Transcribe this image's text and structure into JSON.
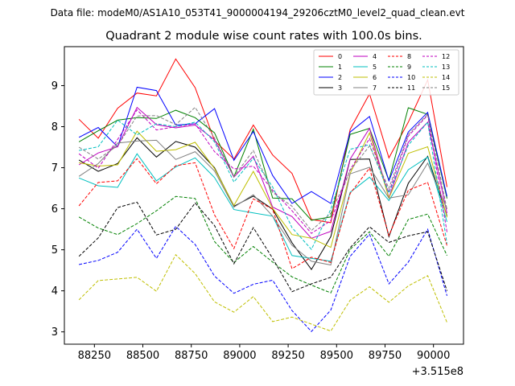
{
  "header": {
    "data_file": "Data file: modeM0/AS1A10_053T41_9000004194_29206cztM0_level2_quad_clean.evt"
  },
  "chart_data": {
    "type": "line",
    "title": "Quadrant 2 module wise count rates with 100.0s bins.",
    "xlabel": "",
    "ylabel": "",
    "x_offset_label": "+3.515e8",
    "xlim": [
      88095,
      90155
    ],
    "ylim": [
      2.7,
      9.95
    ],
    "xticks": [
      88250,
      88500,
      88750,
      89000,
      89250,
      89500,
      89750,
      90000
    ],
    "yticks": [
      3,
      4,
      5,
      6,
      7,
      8,
      9
    ],
    "grid": false,
    "legend_position": "top-right",
    "legend_columns": 4,
    "x": [
      88170,
      88270,
      88370,
      88470,
      88570,
      88670,
      88770,
      88870,
      88970,
      89070,
      89170,
      89270,
      89370,
      89470,
      89570,
      89670,
      89770,
      89870,
      89970,
      90070
    ],
    "series": [
      {
        "name": "0",
        "color": "#ff0000",
        "dash": "solid",
        "values": [
          8.18,
          7.72,
          8.45,
          8.82,
          8.75,
          9.65,
          8.95,
          7.66,
          7.21,
          8.04,
          7.31,
          6.86,
          5.74,
          5.66,
          7.93,
          8.8,
          7.24,
          8.11,
          9.14,
          6.53
        ]
      },
      {
        "name": "1",
        "color": "#008000",
        "dash": "solid",
        "values": [
          7.63,
          7.9,
          8.16,
          8.22,
          8.2,
          8.4,
          8.22,
          7.85,
          6.78,
          7.94,
          6.26,
          6.24,
          5.72,
          5.8,
          7.81,
          7.96,
          6.69,
          8.46,
          8.3,
          6.25
        ]
      },
      {
        "name": "2",
        "color": "#0000ff",
        "dash": "solid",
        "values": [
          7.74,
          7.98,
          7.51,
          8.96,
          8.88,
          8.04,
          8.07,
          8.44,
          7.18,
          7.88,
          6.81,
          6.13,
          6.42,
          6.13,
          7.87,
          8.25,
          6.68,
          7.87,
          8.35,
          6.3
        ]
      },
      {
        "name": "3",
        "color": "#000000",
        "dash": "solid",
        "values": [
          7.19,
          6.91,
          7.1,
          7.73,
          7.26,
          7.64,
          7.5,
          7.0,
          6.06,
          6.31,
          5.99,
          5.17,
          4.52,
          5.32,
          7.2,
          7.21,
          5.32,
          6.62,
          7.28,
          5.82
        ]
      },
      {
        "name": "4",
        "color": "#bf00bf",
        "dash": "solid",
        "values": [
          7.07,
          7.36,
          7.51,
          8.47,
          8.05,
          7.97,
          8.04,
          7.68,
          6.77,
          7.28,
          6.04,
          5.81,
          5.28,
          5.45,
          7.21,
          7.96,
          6.27,
          7.62,
          8.11,
          5.89
        ]
      },
      {
        "name": "5",
        "color": "#00bfbf",
        "dash": "solid",
        "values": [
          6.75,
          6.56,
          6.52,
          7.34,
          6.68,
          7.02,
          7.24,
          6.76,
          5.98,
          5.9,
          5.82,
          4.86,
          4.79,
          4.72,
          6.4,
          6.77,
          6.2,
          6.95,
          7.26,
          5.68
        ]
      },
      {
        "name": "6",
        "color": "#bfbf00",
        "dash": "solid",
        "values": [
          7.12,
          7.04,
          7.07,
          7.89,
          7.4,
          7.44,
          7.62,
          6.98,
          6.08,
          6.91,
          6.01,
          5.37,
          5.28,
          5.06,
          6.86,
          7.85,
          6.26,
          7.35,
          7.51,
          5.79
        ]
      },
      {
        "name": "7",
        "color": "#808080",
        "dash": "solid",
        "values": [
          6.79,
          7.1,
          7.6,
          7.65,
          7.67,
          7.2,
          7.39,
          6.92,
          6.04,
          6.34,
          5.82,
          5.11,
          4.72,
          4.63,
          6.85,
          7.01,
          6.26,
          6.34,
          7.11,
          5.99
        ]
      },
      {
        "name": "8",
        "color": "#ff0000",
        "dash": "dashed",
        "values": [
          6.07,
          6.64,
          6.68,
          7.22,
          6.61,
          7.05,
          7.12,
          5.85,
          5.03,
          6.24,
          5.99,
          4.54,
          4.82,
          4.69,
          6.37,
          6.99,
          5.35,
          6.45,
          6.64,
          5.1
        ]
      },
      {
        "name": "9",
        "color": "#008000",
        "dash": "dashed",
        "values": [
          5.8,
          5.53,
          5.37,
          5.64,
          5.95,
          6.3,
          6.25,
          5.2,
          4.69,
          5.08,
          4.7,
          4.34,
          4.14,
          3.95,
          5.01,
          5.44,
          4.84,
          5.74,
          5.87,
          4.86
        ]
      },
      {
        "name": "10",
        "color": "#0000ff",
        "dash": "dashed",
        "values": [
          4.64,
          4.74,
          4.94,
          5.5,
          4.79,
          5.57,
          5.13,
          4.36,
          3.94,
          4.16,
          4.26,
          3.52,
          3.01,
          3.53,
          4.84,
          5.38,
          4.17,
          4.7,
          5.5,
          3.88
        ]
      },
      {
        "name": "11",
        "color": "#000000",
        "dash": "dashed",
        "values": [
          4.84,
          5.29,
          6.03,
          6.16,
          5.36,
          5.5,
          6.14,
          5.59,
          4.66,
          5.54,
          4.79,
          3.98,
          4.17,
          4.33,
          5.05,
          5.56,
          5.18,
          5.34,
          5.44,
          4.0
        ]
      },
      {
        "name": "12",
        "color": "#bf00bf",
        "dash": "dashed",
        "values": [
          7.34,
          6.99,
          7.69,
          8.41,
          7.92,
          8.0,
          8.07,
          7.39,
          6.97,
          7.04,
          6.45,
          5.95,
          5.4,
          5.71,
          6.95,
          7.71,
          6.4,
          7.77,
          8.28,
          5.43
        ]
      },
      {
        "name": "13",
        "color": "#00bfbf",
        "dash": "dashed",
        "values": [
          7.42,
          7.51,
          8.16,
          7.8,
          8.07,
          8.0,
          8.11,
          7.63,
          6.65,
          7.23,
          6.53,
          5.54,
          5.01,
          5.99,
          7.45,
          7.56,
          6.38,
          7.55,
          8.11,
          5.15
        ]
      },
      {
        "name": "14",
        "color": "#bfbf00",
        "dash": "dashed",
        "values": [
          3.78,
          4.25,
          4.29,
          4.33,
          3.99,
          4.88,
          4.42,
          3.73,
          3.48,
          3.86,
          3.25,
          3.36,
          3.19,
          3.02,
          3.77,
          4.1,
          3.72,
          4.12,
          4.37,
          3.23
        ]
      },
      {
        "name": "15",
        "color": "#808080",
        "dash": "dashed",
        "values": [
          7.5,
          7.21,
          7.54,
          8.26,
          8.27,
          8.05,
          8.47,
          7.72,
          6.78,
          7.42,
          6.4,
          6.06,
          5.47,
          5.89,
          6.93,
          7.53,
          6.5,
          7.81,
          8.3,
          5.98
        ]
      }
    ]
  }
}
